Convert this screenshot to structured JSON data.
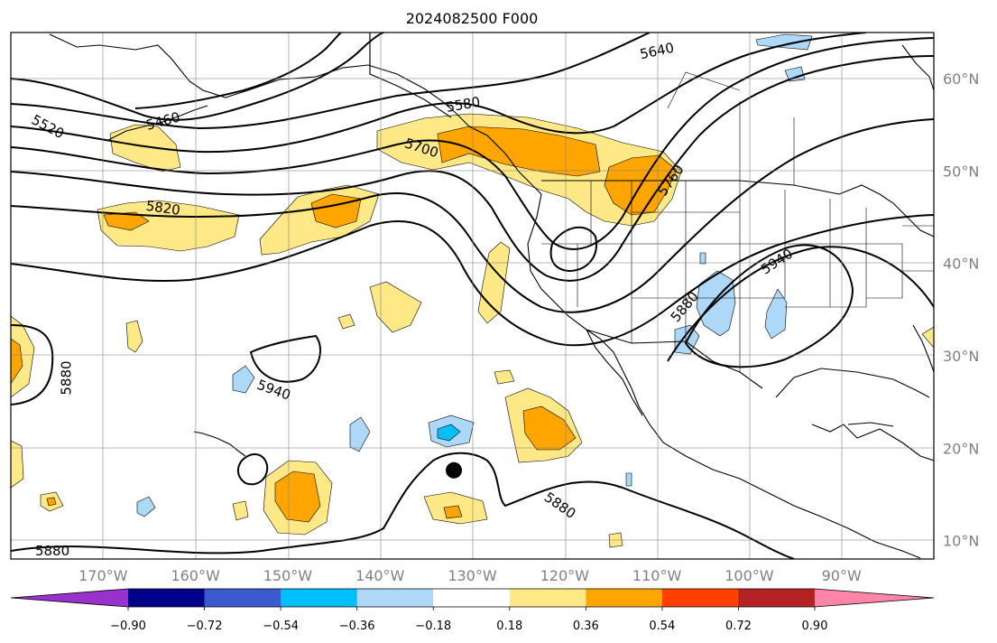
{
  "title": "2024082500 F000",
  "map": {
    "lon_range": [
      -180,
      -80
    ],
    "lat_range": [
      8,
      65
    ],
    "grid": true,
    "lat_ticks": [
      {
        "value": 10,
        "label": "10°N"
      },
      {
        "value": 20,
        "label": "20°N"
      },
      {
        "value": 30,
        "label": "30°N"
      },
      {
        "value": 40,
        "label": "40°N"
      },
      {
        "value": 50,
        "label": "50°N"
      },
      {
        "value": 60,
        "label": "60°N"
      }
    ],
    "lon_ticks": [
      {
        "value": -170,
        "label": "170°W"
      },
      {
        "value": -160,
        "label": "160°W"
      },
      {
        "value": -150,
        "label": "150°W"
      },
      {
        "value": -140,
        "label": "140°W"
      },
      {
        "value": -130,
        "label": "130°W"
      },
      {
        "value": -120,
        "label": "120°W"
      },
      {
        "value": -110,
        "label": "110°W"
      },
      {
        "value": -100,
        "label": "100°W"
      },
      {
        "value": -90,
        "label": "90°W"
      }
    ],
    "contour_labels": [
      {
        "text": "5520",
        "lon": -176,
        "lat": 54.8,
        "angle": 28
      },
      {
        "text": "5460",
        "lon": -163.5,
        "lat": 55.4,
        "angle": -15
      },
      {
        "text": "5580",
        "lon": -131,
        "lat": 57.2,
        "angle": -10
      },
      {
        "text": "5640",
        "lon": -110,
        "lat": 63,
        "angle": -12
      },
      {
        "text": "5700",
        "lon": -135.5,
        "lat": 52.5,
        "angle": 18
      },
      {
        "text": "5760",
        "lon": -108.5,
        "lat": 49,
        "angle": -55
      },
      {
        "text": "5820",
        "lon": -163.5,
        "lat": 46,
        "angle": 8
      },
      {
        "text": "5940",
        "lon": -97,
        "lat": 40.2,
        "angle": -33
      },
      {
        "text": "5880",
        "lon": -107,
        "lat": 35.3,
        "angle": -50
      },
      {
        "text": "5880",
        "lon": -174,
        "lat": 27.6,
        "angle": -90
      },
      {
        "text": "5940",
        "lon": -151.5,
        "lat": 26.3,
        "angle": 20
      },
      {
        "text": "5880",
        "lon": -120.5,
        "lat": 13.8,
        "angle": 35
      },
      {
        "text": "5880",
        "lon": -175.5,
        "lat": 8.9,
        "angle": 0
      }
    ],
    "marker": {
      "lon": -132,
      "lat": 17.6,
      "shape": "filled-circle"
    }
  },
  "colorbar": {
    "colors": [
      "#9932cc",
      "#00008b",
      "#3a5bd0",
      "#00bfff",
      "#add8f8",
      "#ffffff",
      "#ffe886",
      "#ffa500",
      "#ff4000",
      "#b22222",
      "#ff85a8"
    ],
    "tick_labels": [
      "−0.90",
      "−0.72",
      "−0.54",
      "−0.36",
      "−0.18",
      "0.18",
      "0.36",
      "0.54",
      "0.72",
      "0.90"
    ],
    "extend": "both"
  }
}
